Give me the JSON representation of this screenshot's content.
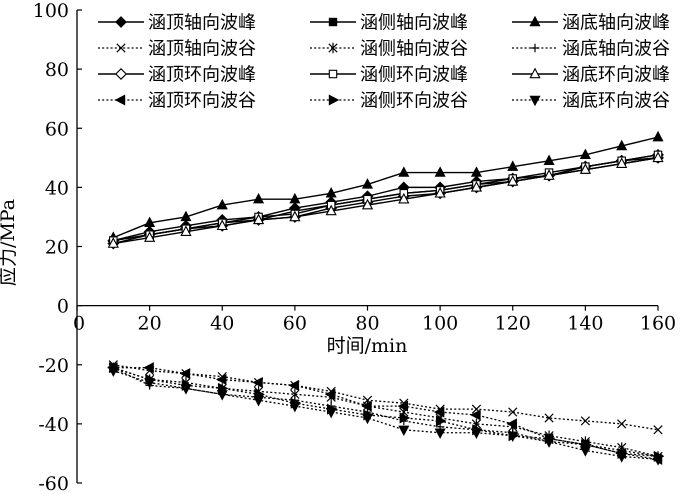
{
  "chart_data": {
    "type": "line",
    "xlabel": "时间/min",
    "ylabel": "应力/MPa",
    "xlim": [
      0,
      160
    ],
    "ylim": [
      -60,
      100
    ],
    "xticks": [
      0,
      20,
      40,
      60,
      80,
      100,
      120,
      140,
      160
    ],
    "yticks": [
      -60,
      -40,
      -20,
      0,
      20,
      40,
      60,
      80,
      100
    ],
    "grid": false,
    "legend_position": "top",
    "x": [
      10,
      20,
      30,
      40,
      50,
      60,
      70,
      80,
      90,
      100,
      110,
      120,
      130,
      140,
      150,
      160
    ],
    "series": [
      {
        "name": "涵顶轴向波峰",
        "marker": "diamond-filled",
        "dash": "solid",
        "values": [
          22,
          25,
          27,
          29,
          30,
          33,
          35,
          37,
          40,
          40,
          42,
          43,
          44,
          47,
          49,
          51
        ]
      },
      {
        "name": "涵侧轴向波峰",
        "marker": "square-filled",
        "dash": "solid",
        "values": [
          22,
          24,
          26,
          28,
          29,
          32,
          34,
          36,
          38,
          39,
          41,
          42,
          44,
          46,
          48,
          50
        ]
      },
      {
        "name": "涵底轴向波峰",
        "marker": "triangle-filled",
        "dash": "solid",
        "values": [
          23,
          28,
          30,
          34,
          36,
          36,
          38,
          41,
          45,
          45,
          45,
          47,
          49,
          51,
          54,
          57
        ]
      },
      {
        "name": "涵顶轴向波谷",
        "marker": "x",
        "dash": "dotted",
        "values": [
          -20,
          -22,
          -23,
          -24,
          -26,
          -27,
          -29,
          -32,
          -33,
          -35,
          -35,
          -36,
          -38,
          -39,
          -40,
          -42
        ]
      },
      {
        "name": "涵侧轴向波谷",
        "marker": "asterisk",
        "dash": "dotted",
        "values": [
          -21,
          -25,
          -26,
          -28,
          -29,
          -30,
          -31,
          -34,
          -36,
          -38,
          -40,
          -41,
          -44,
          -46,
          -48,
          -51
        ]
      },
      {
        "name": "涵底轴向波谷",
        "marker": "plus",
        "dash": "dotted",
        "values": [
          -21,
          -27,
          -28,
          -30,
          -31,
          -32,
          -34,
          -36,
          -39,
          -41,
          -42,
          -43,
          -46,
          -47,
          -49,
          -51
        ]
      },
      {
        "name": "涵顶环向波峰",
        "marker": "diamond-open",
        "dash": "solid",
        "values": [
          21,
          24,
          26,
          27,
          29,
          30,
          33,
          35,
          37,
          38,
          40,
          42,
          44,
          47,
          49,
          50
        ]
      },
      {
        "name": "涵侧环向波峰",
        "marker": "square-open",
        "dash": "solid",
        "values": [
          22,
          24,
          26,
          28,
          30,
          31,
          34,
          36,
          38,
          39,
          41,
          43,
          45,
          47,
          49,
          51
        ]
      },
      {
        "name": "涵底环向波峰",
        "marker": "triangle-open",
        "dash": "solid",
        "values": [
          21,
          23,
          25,
          27,
          29,
          30,
          32,
          34,
          36,
          38,
          40,
          42,
          44,
          46,
          48,
          50
        ]
      },
      {
        "name": "涵顶环向波谷",
        "marker": "triangle-left-filled",
        "dash": "dotted",
        "values": [
          -21,
          -21,
          -23,
          -25,
          -26,
          -27,
          -30,
          -34,
          -34,
          -36,
          -37,
          -40,
          -45,
          -47,
          -50,
          -52
        ]
      },
      {
        "name": "涵侧环向波谷",
        "marker": "triangle-right-filled",
        "dash": "dotted",
        "values": [
          -21,
          -25,
          -27,
          -28,
          -30,
          -33,
          -35,
          -37,
          -38,
          -39,
          -42,
          -44,
          -45,
          -47,
          -50,
          -51
        ]
      },
      {
        "name": "涵底环向波谷",
        "marker": "triangle-down-filled",
        "dash": "dotted",
        "values": [
          -22,
          -26,
          -28,
          -30,
          -32,
          -34,
          -36,
          -38,
          -42,
          -43,
          -43,
          -44,
          -46,
          -49,
          -51,
          -52
        ]
      }
    ]
  }
}
